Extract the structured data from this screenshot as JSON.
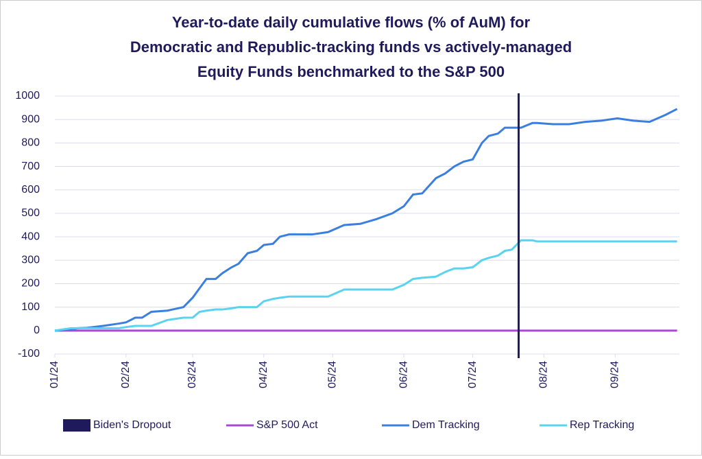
{
  "chart_data": {
    "type": "line",
    "title_lines": [
      "Year-to-date daily cumulative flows (% of AuM) for",
      "Democratic and Republic-tracking funds vs actively-managed",
      "Equity Funds benchmarked to the S&P 500"
    ],
    "x": [
      0,
      7,
      10,
      14,
      21,
      28,
      31,
      35,
      38,
      42,
      49,
      56,
      60,
      63,
      66,
      70,
      73,
      77,
      80,
      84,
      88,
      91,
      95,
      98,
      102,
      105,
      112,
      119,
      126,
      133,
      140,
      147,
      152,
      156,
      160,
      166,
      170,
      174,
      178,
      182,
      186,
      189,
      193,
      196,
      199,
      203,
      208,
      210,
      217,
      224,
      231,
      238,
      245,
      252,
      259,
      266,
      271
    ],
    "xlim": [
      0,
      272
    ],
    "xticks": [
      {
        "value": 0,
        "label": "01/24"
      },
      {
        "value": 31,
        "label": "02/24"
      },
      {
        "value": 60,
        "label": "03/24"
      },
      {
        "value": 91,
        "label": "04/24"
      },
      {
        "value": 121,
        "label": "05/24"
      },
      {
        "value": 152,
        "label": "06/24"
      },
      {
        "value": 182,
        "label": "07/24"
      },
      {
        "value": 213,
        "label": "08/24"
      },
      {
        "value": 244,
        "label": "09/24"
      }
    ],
    "ylim": [
      -100,
      1000
    ],
    "yticks": [
      -100,
      0,
      100,
      200,
      300,
      400,
      500,
      600,
      700,
      800,
      900,
      1000
    ],
    "grid": true,
    "vline": {
      "name": "Biden's Dropout",
      "x": 202,
      "color": "#1f1a5c"
    },
    "series": [
      {
        "name": "S&P 500 Act",
        "color": "#a64ad6",
        "values": [
          0,
          0,
          0,
          0,
          0,
          0,
          0,
          0,
          0,
          0,
          0,
          0,
          0,
          0,
          0,
          0,
          0,
          0,
          0,
          0,
          0,
          0,
          0,
          0,
          0,
          0,
          0,
          0,
          0,
          0,
          0,
          0,
          0,
          0,
          0,
          0,
          0,
          0,
          0,
          0,
          0,
          0,
          0,
          0,
          0,
          0,
          0,
          0,
          0,
          0,
          0,
          0,
          0,
          0,
          0,
          0,
          0
        ]
      },
      {
        "name": "Dem Tracking",
        "color": "#3a7fe0",
        "values": [
          0,
          5,
          10,
          12,
          20,
          30,
          35,
          55,
          55,
          80,
          85,
          100,
          140,
          180,
          220,
          220,
          245,
          270,
          285,
          330,
          340,
          365,
          370,
          400,
          410,
          410,
          410,
          420,
          450,
          455,
          475,
          500,
          530,
          580,
          585,
          650,
          670,
          700,
          720,
          730,
          800,
          830,
          840,
          865,
          865,
          865,
          885,
          885,
          880,
          880,
          890,
          895,
          905,
          895,
          890,
          920,
          945
        ]
      },
      {
        "name": "Rep Tracking",
        "color": "#5ad3f0",
        "values": [
          0,
          10,
          10,
          10,
          10,
          10,
          15,
          20,
          20,
          20,
          45,
          55,
          55,
          80,
          85,
          90,
          90,
          95,
          100,
          100,
          100,
          125,
          135,
          140,
          145,
          145,
          145,
          145,
          175,
          175,
          175,
          175,
          195,
          220,
          225,
          230,
          250,
          265,
          265,
          270,
          300,
          310,
          320,
          340,
          345,
          385,
          385,
          380,
          380,
          380,
          380,
          380,
          380,
          380,
          380,
          380,
          380
        ]
      }
    ]
  }
}
